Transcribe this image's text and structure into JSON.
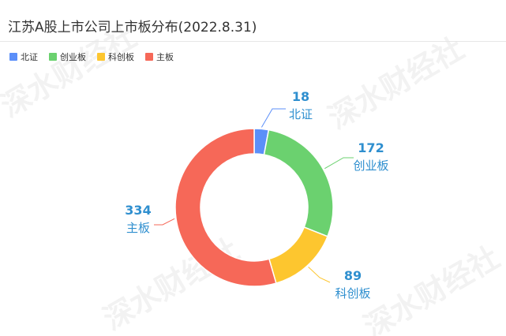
{
  "title": "江苏A股上市公司上市板分布(2022.8.31)",
  "watermark": "深水财经社",
  "label_color": "#2f8fcf",
  "chart_data": {
    "type": "pie",
    "title": "江苏A股上市公司上市板分布(2022.8.31)",
    "donut": true,
    "legend_position": "top-left",
    "slices": [
      {
        "name": "北证",
        "value": 18,
        "color": "#5b8ff9"
      },
      {
        "name": "创业板",
        "value": 172,
        "color": "#6bd16f"
      },
      {
        "name": "科创板",
        "value": 89,
        "color": "#fdc62f"
      },
      {
        "name": "主板",
        "value": 334,
        "color": "#f66858"
      }
    ]
  }
}
